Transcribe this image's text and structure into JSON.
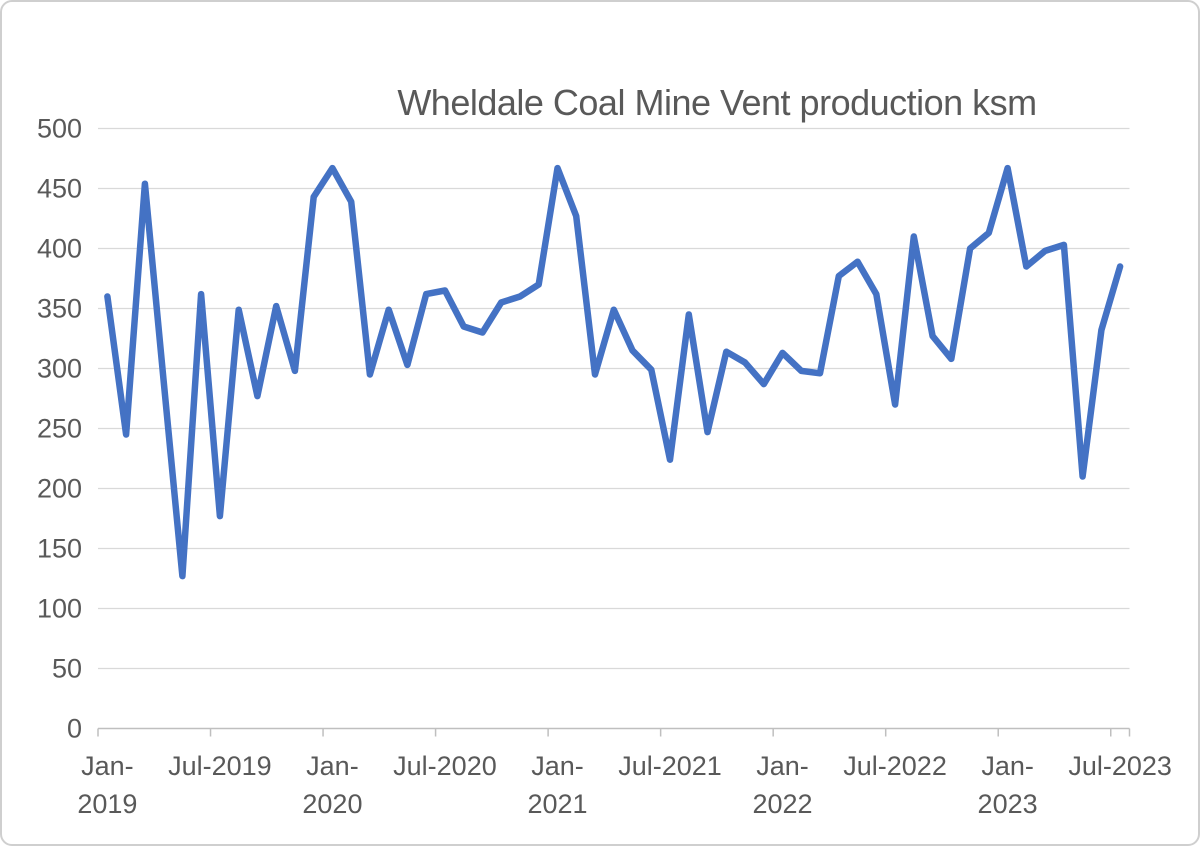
{
  "chart_data": {
    "type": "line",
    "title": "Wheldale Coal Mine Vent production ksm",
    "x": [
      "Jan-2019",
      "Feb-2019",
      "Mar-2019",
      "Apr-2019",
      "May-2019",
      "Jun-2019",
      "Jul-2019",
      "Aug-2019",
      "Sep-2019",
      "Oct-2019",
      "Nov-2019",
      "Dec-2019",
      "Jan-2020",
      "Feb-2020",
      "Mar-2020",
      "Apr-2020",
      "May-2020",
      "Jun-2020",
      "Jul-2020",
      "Aug-2020",
      "Sep-2020",
      "Oct-2020",
      "Nov-2020",
      "Dec-2020",
      "Jan-2021",
      "Feb-2021",
      "Mar-2021",
      "Apr-2021",
      "May-2021",
      "Jun-2021",
      "Jul-2021",
      "Aug-2021",
      "Sep-2021",
      "Oct-2021",
      "Nov-2021",
      "Dec-2021",
      "Jan-2022",
      "Feb-2022",
      "Mar-2022",
      "Apr-2022",
      "May-2022",
      "Jun-2022",
      "Jul-2022",
      "Aug-2022",
      "Sep-2022",
      "Oct-2022",
      "Nov-2022",
      "Dec-2022",
      "Jan-2023",
      "Feb-2023",
      "Mar-2023",
      "Apr-2023",
      "May-2023",
      "Jun-2023",
      "Jul-2023"
    ],
    "values": [
      360,
      245,
      454,
      290,
      127,
      362,
      177,
      349,
      277,
      352,
      298,
      443,
      467,
      439,
      295,
      349,
      303,
      362,
      365,
      335,
      330,
      355,
      360,
      370,
      467,
      427,
      295,
      349,
      315,
      299,
      224,
      345,
      247,
      314,
      305,
      287,
      313,
      298,
      296,
      377,
      389,
      362,
      270,
      410,
      327,
      308,
      400,
      413,
      467,
      385,
      398,
      403,
      210,
      332,
      385
    ],
    "series_name": "Vent production ksm",
    "xlabel": "",
    "ylabel": "",
    "ylim": [
      0,
      500
    ],
    "y_ticks": [
      0,
      50,
      100,
      150,
      200,
      250,
      300,
      350,
      400,
      450,
      500
    ],
    "x_axis_labels": [
      "Jan-\n2019",
      "Jul-2019",
      "Jan-\n2020",
      "Jul-2020",
      "Jan-\n2021",
      "Jul-2021",
      "Jan-\n2022",
      "Jul-2022",
      "Jan-\n2023",
      "Jul-2023"
    ],
    "x_label_interval": 6,
    "grid": "horizontal",
    "legend_position": "none"
  },
  "colors": {
    "series_line": "#4472C4",
    "gridline": "#D9D9D9",
    "axis_line": "#BFBFBF",
    "text": "#595959",
    "frame_border": "#CFCFCF",
    "background": "#FFFFFF"
  }
}
